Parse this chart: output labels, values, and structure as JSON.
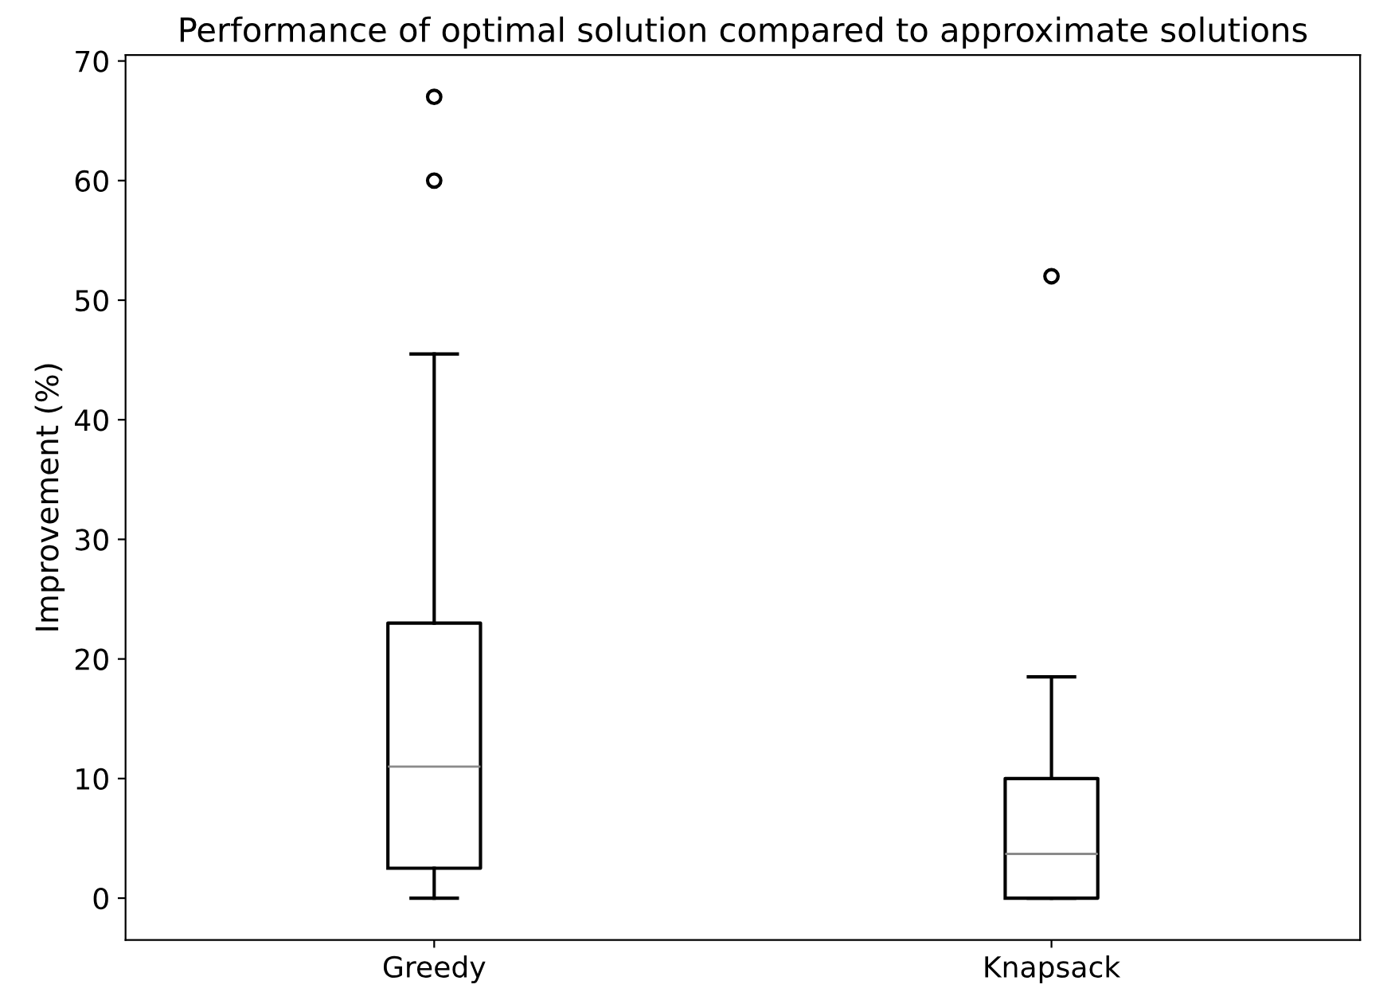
{
  "chart_data": {
    "type": "box",
    "title": "Performance of optimal solution compared to approximate solutions",
    "ylabel": "Improvement (%)",
    "categories": [
      "Greedy",
      "Knapsack"
    ],
    "boxes": [
      {
        "low": 0,
        "q1": 2.5,
        "median": 11,
        "q3": 23,
        "high": 45.5,
        "outliers": [
          60,
          67
        ]
      },
      {
        "low": 0,
        "q1": 0,
        "median": 3.7,
        "q3": 10,
        "high": 18.5,
        "outliers": [
          52
        ]
      }
    ],
    "color": "#000000",
    "ylim": [
      -3.5,
      70.5
    ],
    "yticks": [
      0,
      10,
      20,
      30,
      40,
      50,
      60,
      70
    ],
    "grid": false,
    "legend": false
  }
}
